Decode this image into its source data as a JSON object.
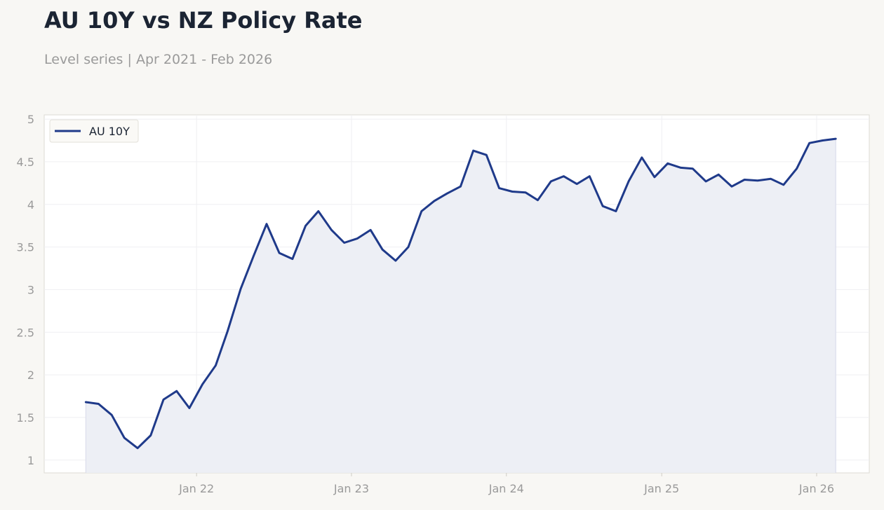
{
  "title": "AU 10Y vs NZ Policy Rate",
  "subtitle": "Level series | Apr 2021 - Feb 2026",
  "chart_data": {
    "type": "line",
    "title": "AU 10Y vs NZ Policy Rate",
    "subtitle": "Level series | Apr 2021 - Feb 2026",
    "xlabel": "",
    "ylabel": "",
    "x_start": "2021-04",
    "x": [
      "2021-04",
      "2021-05",
      "2021-06",
      "2021-07",
      "2021-08",
      "2021-09",
      "2021-10",
      "2021-11",
      "2021-12",
      "2022-01",
      "2022-02",
      "2022-03",
      "2022-04",
      "2022-05",
      "2022-06",
      "2022-07",
      "2022-08",
      "2022-09",
      "2022-10",
      "2022-11",
      "2022-12",
      "2023-01",
      "2023-02",
      "2023-03",
      "2023-04",
      "2023-05",
      "2023-06",
      "2023-07",
      "2023-08",
      "2023-09",
      "2023-10",
      "2023-11",
      "2023-12",
      "2024-01",
      "2024-02",
      "2024-03",
      "2024-04",
      "2024-05",
      "2024-06",
      "2024-07",
      "2024-08",
      "2024-09",
      "2024-10",
      "2024-11",
      "2024-12",
      "2025-01",
      "2025-02",
      "2025-03",
      "2025-04",
      "2025-05",
      "2025-06",
      "2025-07",
      "2025-08",
      "2025-09",
      "2025-10",
      "2025-11",
      "2025-12",
      "2026-01",
      "2026-02"
    ],
    "xlim": [
      "2021-01-07",
      "2026-05-05"
    ],
    "ylim": [
      0.85,
      5.05
    ],
    "x_ticks": [
      {
        "date": "2022-01-01",
        "label": "Jan 22"
      },
      {
        "date": "2023-01-01",
        "label": "Jan 23"
      },
      {
        "date": "2024-01-01",
        "label": "Jan 24"
      },
      {
        "date": "2025-01-01",
        "label": "Jan 25"
      },
      {
        "date": "2026-01-01",
        "label": "Jan 26"
      }
    ],
    "y_ticks": [
      {
        "value": 1,
        "label": "1"
      },
      {
        "value": 1.5,
        "label": "1.5"
      },
      {
        "value": 2,
        "label": "2"
      },
      {
        "value": 2.5,
        "label": "2.5"
      },
      {
        "value": 3,
        "label": "3"
      },
      {
        "value": 3.5,
        "label": "3.5"
      },
      {
        "value": 4,
        "label": "4"
      },
      {
        "value": 4.5,
        "label": "4.5"
      },
      {
        "value": 5,
        "label": "5"
      }
    ],
    "grid": true,
    "legend": "top-left",
    "series": [
      {
        "name": "AU 10Y",
        "color": "#1f3a8a",
        "fill": "#eceef4",
        "values": [
          1.68,
          1.66,
          1.53,
          1.26,
          1.14,
          1.29,
          1.71,
          1.81,
          1.61,
          1.89,
          2.11,
          2.51,
          3.01,
          3.39,
          3.77,
          3.43,
          3.36,
          3.75,
          3.92,
          3.7,
          3.55,
          3.6,
          3.7,
          3.47,
          3.34,
          3.5,
          3.92,
          4.04,
          4.13,
          4.21,
          4.63,
          4.58,
          4.19,
          4.15,
          4.14,
          4.05,
          4.27,
          4.33,
          4.24,
          4.33,
          3.98,
          3.92,
          4.27,
          4.55,
          4.32,
          4.48,
          4.43,
          4.42,
          4.27,
          4.35,
          4.21,
          4.29,
          4.28,
          4.3,
          4.23,
          4.42,
          4.72,
          4.75,
          4.77
        ]
      }
    ]
  }
}
